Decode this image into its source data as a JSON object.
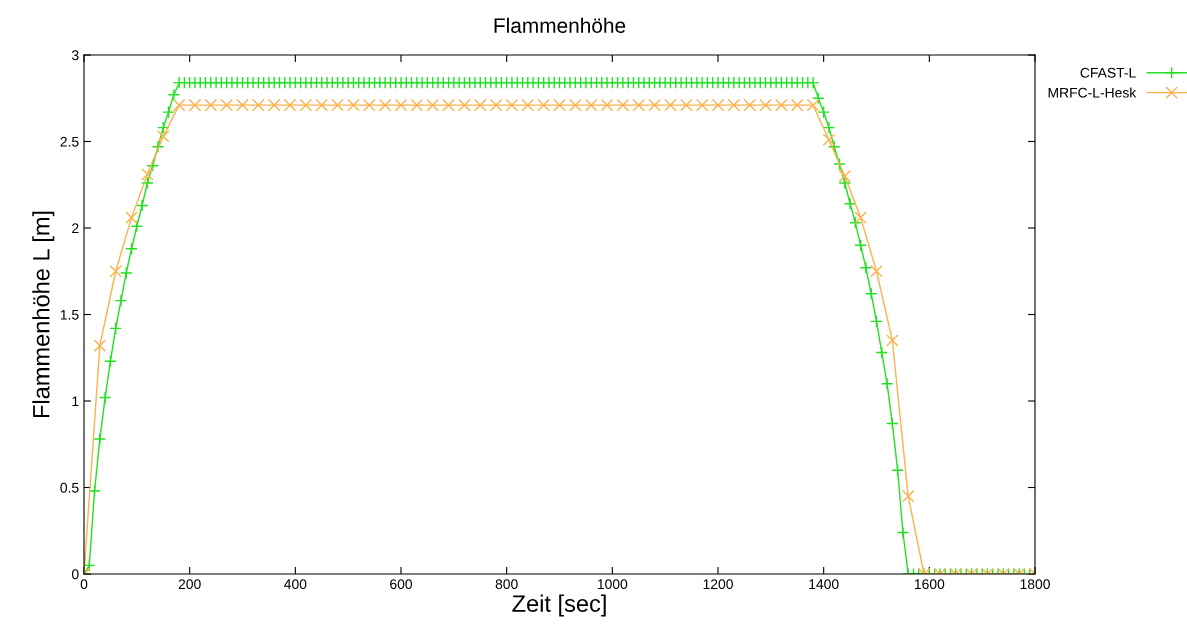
{
  "chart_data": {
    "type": "line",
    "title": "Flammenhöhe",
    "xlabel": "Zeit [sec]",
    "ylabel": "Flammenhöhe L [m]",
    "xlim": [
      0,
      1800
    ],
    "xticks": [
      0,
      200,
      400,
      600,
      800,
      1000,
      1200,
      1400,
      1600,
      1800
    ],
    "ylim": [
      0,
      3
    ],
    "yticks": [
      0,
      0.5,
      1,
      1.5,
      2,
      2.5,
      3
    ],
    "grid": false,
    "legend": "top right",
    "series": [
      {
        "name": "CFAST-L",
        "color": "#22e022",
        "marker": "plus",
        "x": [
          0,
          10,
          20,
          30,
          40,
          50,
          60,
          70,
          80,
          90,
          100,
          110,
          120,
          130,
          140,
          150,
          160,
          170,
          180,
          190,
          200,
          210,
          220,
          230,
          240,
          250,
          260,
          270,
          280,
          290,
          300,
          310,
          320,
          330,
          340,
          350,
          360,
          370,
          380,
          390,
          400,
          410,
          420,
          430,
          440,
          450,
          460,
          470,
          480,
          490,
          500,
          510,
          520,
          530,
          540,
          550,
          560,
          570,
          580,
          590,
          600,
          610,
          620,
          630,
          640,
          650,
          660,
          670,
          680,
          690,
          700,
          710,
          720,
          730,
          740,
          750,
          760,
          770,
          780,
          790,
          800,
          810,
          820,
          830,
          840,
          850,
          860,
          870,
          880,
          890,
          900,
          910,
          920,
          930,
          940,
          950,
          960,
          970,
          980,
          990,
          1000,
          1010,
          1020,
          1030,
          1040,
          1050,
          1060,
          1070,
          1080,
          1090,
          1100,
          1110,
          1120,
          1130,
          1140,
          1150,
          1160,
          1170,
          1180,
          1190,
          1200,
          1210,
          1220,
          1230,
          1240,
          1250,
          1260,
          1270,
          1280,
          1290,
          1300,
          1310,
          1320,
          1330,
          1340,
          1350,
          1360,
          1370,
          1380,
          1390,
          1400,
          1410,
          1420,
          1430,
          1440,
          1450,
          1460,
          1470,
          1480,
          1490,
          1500,
          1510,
          1520,
          1530,
          1540,
          1550,
          1560,
          1570,
          1580,
          1590,
          1600,
          1610,
          1620,
          1630,
          1640,
          1650,
          1660,
          1670,
          1680,
          1690,
          1700,
          1710,
          1720,
          1730,
          1740,
          1750,
          1760,
          1770,
          1780,
          1790,
          1800
        ],
        "values": [
          0,
          0.05,
          0.48,
          0.78,
          1.02,
          1.23,
          1.42,
          1.58,
          1.74,
          1.88,
          2.01,
          2.13,
          2.26,
          2.36,
          2.47,
          2.58,
          2.67,
          2.77,
          2.84,
          2.84,
          2.84,
          2.84,
          2.84,
          2.84,
          2.84,
          2.84,
          2.84,
          2.84,
          2.84,
          2.84,
          2.84,
          2.84,
          2.84,
          2.84,
          2.84,
          2.84,
          2.84,
          2.84,
          2.84,
          2.84,
          2.84,
          2.84,
          2.84,
          2.84,
          2.84,
          2.84,
          2.84,
          2.84,
          2.84,
          2.84,
          2.84,
          2.84,
          2.84,
          2.84,
          2.84,
          2.84,
          2.84,
          2.84,
          2.84,
          2.84,
          2.84,
          2.84,
          2.84,
          2.84,
          2.84,
          2.84,
          2.84,
          2.84,
          2.84,
          2.84,
          2.84,
          2.84,
          2.84,
          2.84,
          2.84,
          2.84,
          2.84,
          2.84,
          2.84,
          2.84,
          2.84,
          2.84,
          2.84,
          2.84,
          2.84,
          2.84,
          2.84,
          2.84,
          2.84,
          2.84,
          2.84,
          2.84,
          2.84,
          2.84,
          2.84,
          2.84,
          2.84,
          2.84,
          2.84,
          2.84,
          2.84,
          2.84,
          2.84,
          2.84,
          2.84,
          2.84,
          2.84,
          2.84,
          2.84,
          2.84,
          2.84,
          2.84,
          2.84,
          2.84,
          2.84,
          2.84,
          2.84,
          2.84,
          2.84,
          2.84,
          2.84,
          2.84,
          2.84,
          2.84,
          2.84,
          2.84,
          2.84,
          2.84,
          2.84,
          2.84,
          2.84,
          2.84,
          2.84,
          2.84,
          2.84,
          2.84,
          2.84,
          2.84,
          2.84,
          2.75,
          2.67,
          2.58,
          2.47,
          2.37,
          2.26,
          2.14,
          2.03,
          1.9,
          1.77,
          1.62,
          1.46,
          1.28,
          1.1,
          0.87,
          0.6,
          0.24,
          0,
          0,
          0,
          0,
          0,
          0,
          0,
          0,
          0,
          0,
          0,
          0,
          0,
          0,
          0,
          0,
          0,
          0,
          0,
          0,
          0,
          0,
          0,
          0,
          0
        ]
      },
      {
        "name": "MRFC-L-Hesk",
        "color": "#ffb04a",
        "marker": "cross",
        "x": [
          0,
          30,
          60,
          90,
          120,
          150,
          180,
          210,
          240,
          270,
          300,
          330,
          360,
          390,
          420,
          450,
          480,
          510,
          540,
          570,
          600,
          630,
          660,
          690,
          720,
          750,
          780,
          810,
          840,
          870,
          900,
          930,
          960,
          990,
          1020,
          1050,
          1080,
          1110,
          1140,
          1170,
          1200,
          1230,
          1260,
          1290,
          1320,
          1350,
          1380,
          1410,
          1440,
          1470,
          1500,
          1530,
          1560,
          1590,
          1620,
          1650,
          1680,
          1710,
          1740,
          1770,
          1800
        ],
        "values": [
          0,
          1.32,
          1.75,
          2.06,
          2.31,
          2.53,
          2.71,
          2.71,
          2.71,
          2.71,
          2.71,
          2.71,
          2.71,
          2.71,
          2.71,
          2.71,
          2.71,
          2.71,
          2.71,
          2.71,
          2.71,
          2.71,
          2.71,
          2.71,
          2.71,
          2.71,
          2.71,
          2.71,
          2.71,
          2.71,
          2.71,
          2.71,
          2.71,
          2.71,
          2.71,
          2.71,
          2.71,
          2.71,
          2.71,
          2.71,
          2.71,
          2.71,
          2.71,
          2.71,
          2.71,
          2.71,
          2.71,
          2.51,
          2.3,
          2.06,
          1.75,
          1.35,
          0.45,
          0,
          0,
          0,
          0,
          0,
          0,
          0,
          0
        ]
      }
    ]
  }
}
